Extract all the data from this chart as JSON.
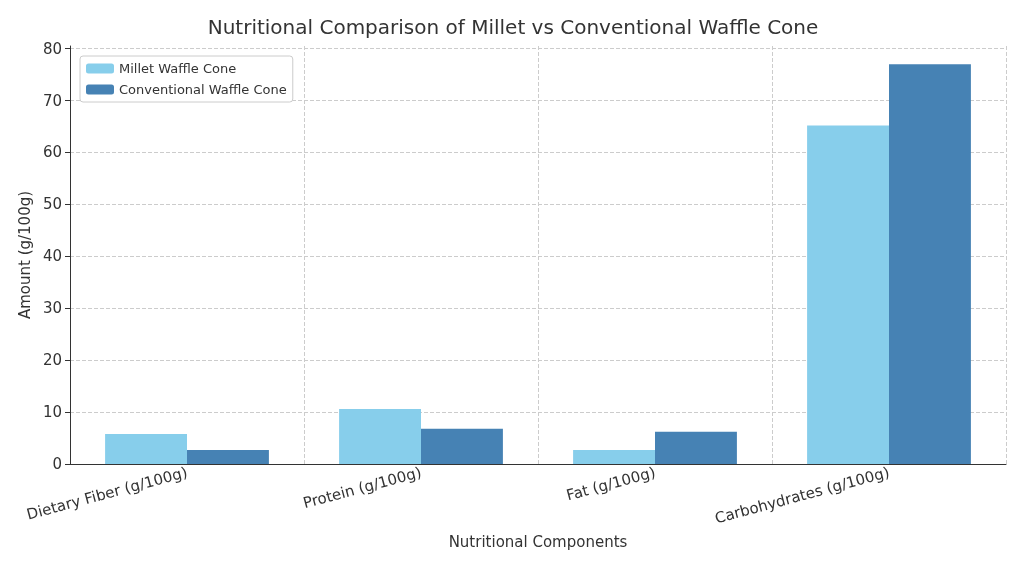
{
  "chart_data": {
    "type": "bar",
    "title": "Nutritional Comparison of Millet vs Conventional Waffle Cone",
    "xlabel": "Nutritional Components",
    "ylabel": "Amount (g/100g)",
    "categories": [
      "Dietary Fiber (g/100g)",
      "Protein (g/100g)",
      "Fat (g/100g)",
      "Carbohydrates (g/100g)"
    ],
    "series": [
      {
        "name": "Millet Waffle Cone",
        "color": "#87ceeb",
        "values": [
          5.8,
          10.6,
          2.7,
          65.2
        ]
      },
      {
        "name": "Conventional Waffle Cone",
        "color": "#4682b4",
        "values": [
          2.7,
          6.8,
          6.2,
          77
        ]
      }
    ],
    "ylim": [
      0,
      80.5
    ],
    "yticks": [
      0,
      10,
      20,
      30,
      40,
      50,
      60,
      70,
      80
    ],
    "grid": true,
    "legend": "top left"
  }
}
